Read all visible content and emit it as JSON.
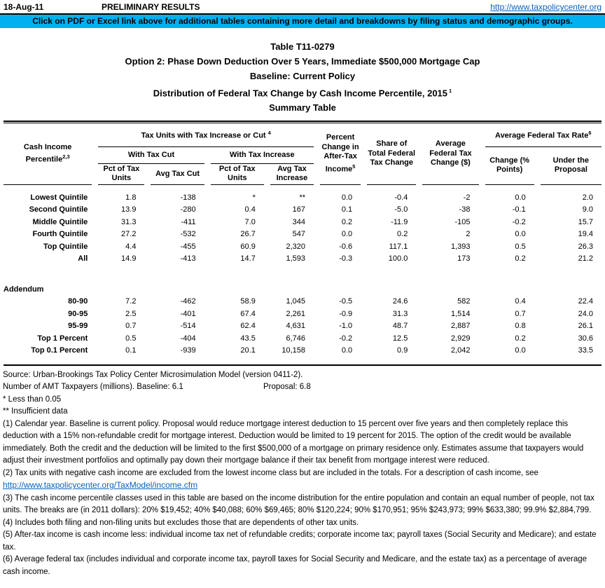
{
  "colors": {
    "banner_bg": "#00B0F0",
    "link": "#0563C1"
  },
  "header": {
    "date": "18-Aug-11",
    "status": "PRELIMINARY RESULTS",
    "url": "http://www.taxpolicycenter.org"
  },
  "banner": {
    "text": "Click on PDF or Excel link above for additional tables containing more detail and breakdowns by filing status and demographic groups."
  },
  "title": {
    "line1": "Table T11-0279",
    "line2": "Option 2: Phase Down Deduction Over 5 Years, Immediate $500,000 Mortgage Cap",
    "line3": "Baseline: Current Policy",
    "line4": "Distribution of Federal Tax Change by Cash Income Percentile, 2015",
    "line4_sup": "1",
    "line5": "Summary Table"
  },
  "table": {
    "headers": {
      "cash_income": "Cash Income Percentile",
      "cash_income_sup": "2,3",
      "group_tax_units": "Tax Units with Tax Increase or Cut",
      "group_tax_units_sup": "4",
      "with_tax_cut": "With Tax Cut",
      "with_tax_increase": "With Tax Increase",
      "pct_of_tax_units_cut": "Pct of Tax Units",
      "avg_tax_cut": "Avg Tax Cut",
      "pct_of_tax_units_increase": "Pct of Tax Units",
      "avg_tax_increase": "Avg Tax Increase",
      "pct_change_after_tax": "Percent Change in After-Tax Income",
      "pct_change_after_tax_sup": "5",
      "share_total": "Share of Total Federal Tax Change",
      "avg_fed_tax_change": "Average Federal Tax Change ($)",
      "avg_fed_tax_rate": "Average Federal Tax Rate",
      "avg_fed_tax_rate_sup": "6",
      "change_points": "Change (% Points)",
      "under_proposal": "Under the Proposal"
    },
    "rows": [
      [
        "Lowest Quintile",
        "1.8",
        "-138",
        "*",
        "**",
        "0.0",
        "-0.4",
        "-2",
        "0.0",
        "2.0"
      ],
      [
        "Second Quintile",
        "13.9",
        "-280",
        "0.4",
        "167",
        "0.1",
        "-5.0",
        "-38",
        "-0.1",
        "9.0"
      ],
      [
        "Middle Quintile",
        "31.3",
        "-411",
        "7.0",
        "344",
        "0.2",
        "-11.9",
        "-105",
        "-0.2",
        "15.7"
      ],
      [
        "Fourth Quintile",
        "27.2",
        "-532",
        "26.7",
        "547",
        "0.0",
        "0.2",
        "2",
        "0.0",
        "19.4"
      ],
      [
        "Top Quintile",
        "4.4",
        "-455",
        "60.9",
        "2,320",
        "-0.6",
        "117.1",
        "1,393",
        "0.5",
        "26.3"
      ],
      [
        "All",
        "14.9",
        "-413",
        "14.7",
        "1,593",
        "-0.3",
        "100.0",
        "173",
        "0.2",
        "21.2"
      ]
    ],
    "addendum_label": "Addendum",
    "addendum_rows": [
      [
        "80-90",
        "7.2",
        "-462",
        "58.9",
        "1,045",
        "-0.5",
        "24.6",
        "582",
        "0.4",
        "22.4"
      ],
      [
        "90-95",
        "2.5",
        "-401",
        "67.4",
        "2,261",
        "-0.9",
        "31.3",
        "1,514",
        "0.7",
        "24.0"
      ],
      [
        "95-99",
        "0.7",
        "-514",
        "62.4",
        "4,631",
        "-1.0",
        "48.7",
        "2,887",
        "0.8",
        "26.1"
      ],
      [
        "Top 1 Percent",
        "0.5",
        "-404",
        "43.5",
        "6,746",
        "-0.2",
        "12.5",
        "2,929",
        "0.2",
        "30.6"
      ],
      [
        "Top 0.1 Percent",
        "0.1",
        "-939",
        "20.1",
        "10,158",
        "0.0",
        "0.9",
        "2,042",
        "0.0",
        "33.5"
      ]
    ]
  },
  "footer": {
    "source": "Source: Urban-Brookings Tax Policy Center Microsimulation Model (version 0411-2).",
    "amt_left": "Number of AMT Taxpayers (millions).  Baseline: 6.1",
    "amt_right": "Proposal: 6.8",
    "star_note": "* Less than 0.05",
    "double_star_note": "** Insufficient data",
    "note1": "(1) Calendar year. Baseline is current policy. Proposal would reduce mortgage interest deduction to 15 percent over five years and then completely replace this deduction with a 15% non-refundable credit for mortgage interest. Deduction would be limited to 19 percent for 2015.  The option of the credit would be available immediately. Both the credit and the deduction will be limited to the first $500,000 of a mortgage on primary residence only. Estimates assume that taxpayers would adjust their investment portfolios and optimally pay down their mortgage balance if their tax benefit from mortgage interest were reduced.",
    "note2_text": "(2) Tax units with negative cash income are excluded from the lowest income class but are included in the totals. For a description of cash income, see ",
    "note2_link": "http://www.taxpolicycenter.org/TaxModel/income.cfm",
    "note3": "(3) The cash income percentile classes used in this table are based on the income distribution for the entire population and contain an equal number of people, not tax units. The breaks are (in 2011 dollars): 20% $19,452; 40% $40,088; 60% $69,465; 80% $120,224; 90% $170,951; 95% $243,973; 99% $633,380; 99.9% $2,884,799.",
    "note4": "(4) Includes both filing and non-filing units but excludes those that are dependents of other tax units.",
    "note5": "(5) After-tax income is cash income less: individual income tax net of refundable credits; corporate income tax; payroll taxes (Social Security and Medicare); and estate tax.",
    "note6": "(6) Average federal tax (includes individual and corporate income tax, payroll taxes for Social Security and Medicare, and the estate tax) as a percentage of average cash income."
  }
}
